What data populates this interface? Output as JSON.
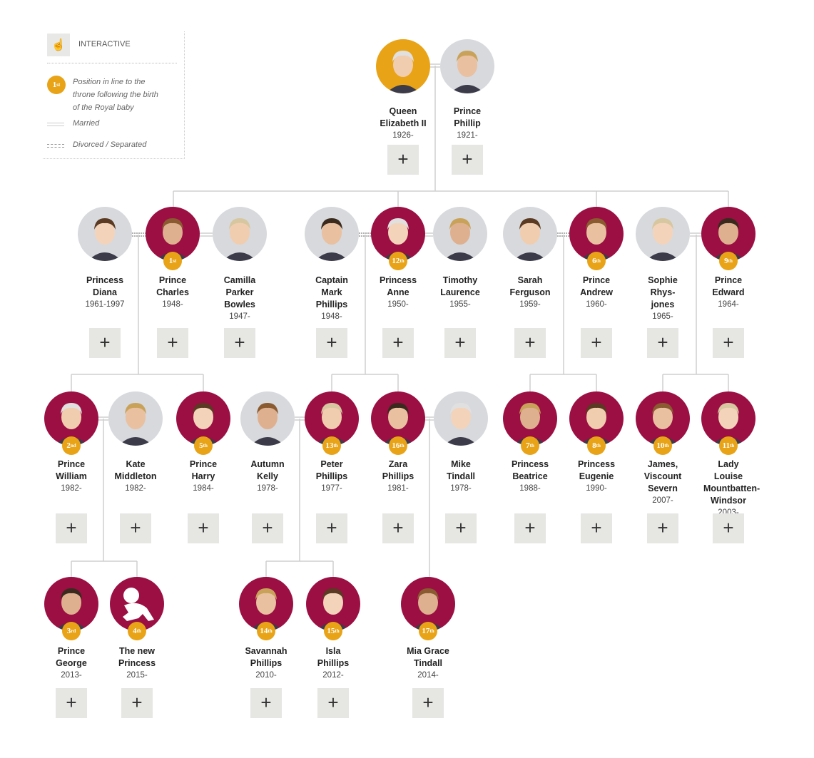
{
  "legend": {
    "interactive_label": "INTERACTIVE",
    "interactive_icon": "hand-pointer-icon",
    "badge": {
      "n": "1",
      "suf": "st"
    },
    "position_text": "Position in line to the throne following the birth of the Royal baby",
    "married_label": "Married",
    "divorced_label": "Divorced / Separated"
  },
  "colors": {
    "royal": "#9b0f42",
    "spouse": "#d7d9dc",
    "monarch": "#e8a317",
    "badge": "#e8a317",
    "button": "#e6e6e3"
  },
  "expand_button_label": "+",
  "people": [
    {
      "name": "Queen Elizabeth II",
      "years": "1926-",
      "type": "monarch"
    },
    {
      "name": "Prince Phillip",
      "years": "1921-",
      "type": "spouse"
    },
    {
      "name": "Princess Diana",
      "years": "1961-1997",
      "type": "spouse"
    },
    {
      "name": "Prince Charles",
      "years": "1948-",
      "type": "royal",
      "rank": {
        "n": "1",
        "suf": "st"
      }
    },
    {
      "name": "Camilla Parker Bowles",
      "years": "1947-",
      "type": "spouse"
    },
    {
      "name": "Captain Mark Phillips",
      "years": "1948-",
      "type": "spouse"
    },
    {
      "name": "Princess Anne",
      "years": "1950-",
      "type": "royal",
      "rank": {
        "n": "12",
        "suf": "th"
      }
    },
    {
      "name": "Timothy Laurence",
      "years": "1955-",
      "type": "spouse"
    },
    {
      "name": "Sarah Ferguson",
      "years": "1959-",
      "type": "spouse"
    },
    {
      "name": "Prince Andrew",
      "years": "1960-",
      "type": "royal",
      "rank": {
        "n": "6",
        "suf": "th"
      }
    },
    {
      "name": "Sophie Rhys-jones",
      "years": "1965-",
      "type": "spouse"
    },
    {
      "name": "Prince Edward",
      "years": "1964-",
      "type": "royal",
      "rank": {
        "n": "9",
        "suf": "th"
      }
    },
    {
      "name": "Prince William",
      "years": "1982-",
      "type": "royal",
      "rank": {
        "n": "2",
        "suf": "nd"
      }
    },
    {
      "name": "Kate Middleton",
      "years": "1982-",
      "type": "spouse"
    },
    {
      "name": "Prince Harry",
      "years": "1984-",
      "type": "royal",
      "rank": {
        "n": "5",
        "suf": "th"
      }
    },
    {
      "name": "Autumn Kelly",
      "years": "1978-",
      "type": "spouse"
    },
    {
      "name": "Peter Phillips",
      "years": "1977-",
      "type": "royal",
      "rank": {
        "n": "13",
        "suf": "th"
      }
    },
    {
      "name": "Zara Phillips",
      "years": "1981-",
      "type": "royal",
      "rank": {
        "n": "16",
        "suf": "th"
      }
    },
    {
      "name": "Mike Tindall",
      "years": "1978-",
      "type": "spouse"
    },
    {
      "name": "Princess Beatrice",
      "years": "1988-",
      "type": "royal",
      "rank": {
        "n": "7",
        "suf": "th"
      }
    },
    {
      "name": "Princess Eugenie",
      "years": "1990-",
      "type": "royal",
      "rank": {
        "n": "8",
        "suf": "th"
      }
    },
    {
      "name": "James, Viscount Severn",
      "years": "2007-",
      "type": "royal",
      "rank": {
        "n": "10",
        "suf": "th"
      }
    },
    {
      "name": "Lady Louise Mountbatten-Windsor",
      "years": "2003-",
      "type": "royal",
      "rank": {
        "n": "11",
        "suf": "th"
      }
    },
    {
      "name": "Prince George",
      "years": "2013-",
      "type": "royal",
      "rank": {
        "n": "3",
        "suf": "rd"
      }
    },
    {
      "name": "The new Princess",
      "years": "2015-",
      "type": "royal",
      "rank": {
        "n": "4",
        "suf": "th"
      },
      "silhouette": "baby-icon"
    },
    {
      "name": "Savannah Phillips",
      "years": "2010-",
      "type": "royal",
      "rank": {
        "n": "14",
        "suf": "th"
      }
    },
    {
      "name": "Isla Phillips",
      "years": "2012-",
      "type": "royal",
      "rank": {
        "n": "15",
        "suf": "th"
      }
    },
    {
      "name": "Mia Grace Tindall",
      "years": "2014-",
      "type": "royal",
      "rank": {
        "n": "17",
        "suf": "th"
      }
    }
  ]
}
